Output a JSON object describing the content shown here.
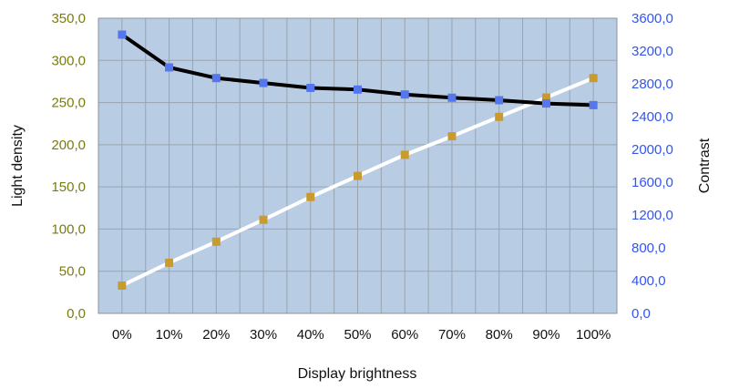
{
  "chart_data": {
    "type": "line",
    "title": "",
    "xlabel": "Display brightness",
    "ylabel": "Light density",
    "y2label": "Contrast",
    "categories": [
      "0%",
      "10%",
      "20%",
      "30%",
      "40%",
      "50%",
      "60%",
      "70%",
      "80%",
      "90%",
      "100%"
    ],
    "ylim": [
      0,
      350
    ],
    "y2lim": [
      0,
      3600
    ],
    "yticks": [
      "0,0",
      "50,0",
      "100,0",
      "150,0",
      "200,0",
      "250,0",
      "300,0",
      "350,0"
    ],
    "y2ticks": [
      "0,0",
      "400,0",
      "800,0",
      "1200,0",
      "1600,0",
      "2000,0",
      "2400,0",
      "2800,0",
      "3200,0",
      "3600,0"
    ],
    "grid": true,
    "legend": "none",
    "series": [
      {
        "axis": "left",
        "values": [
          33,
          60,
          85,
          111,
          138,
          163,
          188,
          210,
          233,
          256,
          279
        ],
        "line_color": "#ffffff",
        "marker_color": "#c99a2e"
      },
      {
        "axis": "right",
        "values": [
          3400,
          3000,
          2870,
          2810,
          2750,
          2730,
          2670,
          2630,
          2600,
          2560,
          2540
        ],
        "line_color": "#000000",
        "marker_color": "#5577ee"
      }
    ],
    "colors": {
      "plot_background": "#b8cce4",
      "grid": "#9aa4ae",
      "left_tick_color": "#7a7a14",
      "right_tick_color": "#3355ee"
    }
  }
}
